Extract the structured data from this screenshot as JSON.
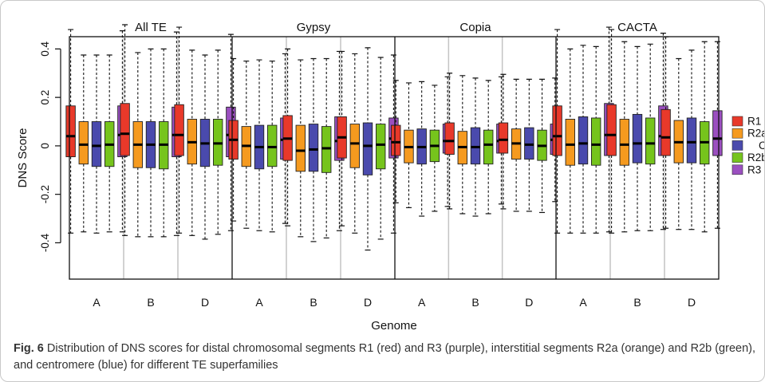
{
  "chart_data": {
    "type": "box",
    "panels": [
      "All TE",
      "Gypsy",
      "Copia",
      "CACTA"
    ],
    "genomes": [
      "A",
      "B",
      "D"
    ],
    "ylabel": "DNS Score",
    "xlabel": "Genome",
    "ylim": [
      -0.55,
      0.5
    ],
    "yticks": [
      -0.4,
      -0.2,
      0,
      0.2,
      0.4
    ],
    "yticklabels": [
      "-0.4",
      "-0.2",
      "0",
      "0.2",
      "0.4"
    ],
    "series": [
      {
        "name": "R1",
        "color": "#e8392a"
      },
      {
        "name": "R2a",
        "color": "#f59a1f"
      },
      {
        "name": "C",
        "color": "#4a4aad"
      },
      {
        "name": "R2b",
        "color": "#76c41c"
      },
      {
        "name": "R3",
        "color": "#9b4fc0"
      }
    ],
    "boxes": [
      [
        [
          [
            -0.36,
            -0.045,
            0.04,
            0.165,
            0.48
          ],
          [
            -0.355,
            -0.075,
            0.005,
            0.1,
            0.375
          ],
          [
            -0.36,
            -0.085,
            0.0,
            0.1,
            0.375
          ],
          [
            -0.355,
            -0.085,
            0.005,
            0.1,
            0.375
          ],
          [
            -0.355,
            -0.045,
            0.045,
            0.165,
            0.475
          ]
        ],
        [
          [
            -0.37,
            -0.04,
            0.05,
            0.175,
            0.5
          ],
          [
            -0.375,
            -0.09,
            0.005,
            0.1,
            0.385
          ],
          [
            -0.375,
            -0.09,
            0.005,
            0.1,
            0.4
          ],
          [
            -0.375,
            -0.095,
            0.005,
            0.1,
            0.4
          ],
          [
            -0.37,
            -0.045,
            0.045,
            0.16,
            0.47
          ]
        ],
        [
          [
            -0.36,
            -0.04,
            0.045,
            0.17,
            0.49
          ],
          [
            -0.37,
            -0.075,
            0.015,
            0.11,
            0.395
          ],
          [
            -0.385,
            -0.085,
            0.01,
            0.11,
            0.375
          ],
          [
            -0.365,
            -0.08,
            0.01,
            0.11,
            0.395
          ],
          [
            -0.35,
            -0.045,
            0.045,
            0.16,
            0.46
          ]
        ]
      ],
      [
        [
          [
            -0.31,
            -0.055,
            0.025,
            0.105,
            0.36
          ],
          [
            -0.34,
            -0.085,
            0.0,
            0.08,
            0.35
          ],
          [
            -0.35,
            -0.095,
            -0.005,
            0.085,
            0.355
          ],
          [
            -0.355,
            -0.085,
            -0.005,
            0.085,
            0.35
          ],
          [
            -0.32,
            -0.055,
            0.025,
            0.115,
            0.38
          ]
        ],
        [
          [
            -0.33,
            -0.06,
            0.03,
            0.125,
            0.4
          ],
          [
            -0.375,
            -0.105,
            -0.02,
            0.085,
            0.355
          ],
          [
            -0.395,
            -0.105,
            -0.015,
            0.09,
            0.36
          ],
          [
            -0.38,
            -0.11,
            -0.01,
            0.08,
            0.36
          ],
          [
            -0.35,
            -0.06,
            0.02,
            0.12,
            0.39
          ]
        ],
        [
          [
            -0.33,
            -0.05,
            0.035,
            0.12,
            0.39
          ],
          [
            -0.36,
            -0.09,
            0.01,
            0.09,
            0.38
          ],
          [
            -0.43,
            -0.12,
            0.0,
            0.095,
            0.405
          ],
          [
            -0.385,
            -0.095,
            0.005,
            0.09,
            0.365
          ],
          [
            -0.36,
            -0.05,
            0.03,
            0.115,
            0.375
          ]
        ]
      ],
      [
        [
          [
            -0.235,
            -0.04,
            0.015,
            0.085,
            0.27
          ],
          [
            -0.255,
            -0.07,
            -0.005,
            0.065,
            0.26
          ],
          [
            -0.29,
            -0.075,
            -0.005,
            0.07,
            0.265
          ],
          [
            -0.27,
            -0.065,
            0.0,
            0.065,
            0.25
          ],
          [
            -0.25,
            -0.03,
            0.02,
            0.09,
            0.285
          ]
        ],
        [
          [
            -0.26,
            -0.035,
            0.02,
            0.095,
            0.3
          ],
          [
            -0.28,
            -0.075,
            -0.005,
            0.06,
            0.29
          ],
          [
            -0.29,
            -0.075,
            -0.005,
            0.075,
            0.28
          ],
          [
            -0.28,
            -0.075,
            0.005,
            0.065,
            0.27
          ],
          [
            -0.24,
            -0.03,
            0.02,
            0.09,
            0.285
          ]
        ],
        [
          [
            -0.26,
            -0.03,
            0.025,
            0.095,
            0.295
          ],
          [
            -0.27,
            -0.055,
            0.01,
            0.07,
            0.275
          ],
          [
            -0.27,
            -0.055,
            0.005,
            0.075,
            0.275
          ],
          [
            -0.275,
            -0.06,
            0.0,
            0.065,
            0.275
          ],
          [
            -0.23,
            -0.035,
            0.025,
            0.09,
            0.28
          ]
        ]
      ],
      [
        [
          [
            -0.36,
            -0.04,
            0.04,
            0.165,
            0.48
          ],
          [
            -0.36,
            -0.08,
            0.005,
            0.11,
            0.4
          ],
          [
            -0.36,
            -0.075,
            0.01,
            0.12,
            0.415
          ],
          [
            -0.36,
            -0.08,
            0.005,
            0.115,
            0.41
          ],
          [
            -0.355,
            -0.04,
            0.045,
            0.175,
            0.49
          ]
        ],
        [
          [
            -0.36,
            -0.04,
            0.045,
            0.17,
            0.48
          ],
          [
            -0.355,
            -0.08,
            0.005,
            0.11,
            0.43
          ],
          [
            -0.35,
            -0.07,
            0.01,
            0.13,
            0.41
          ],
          [
            -0.35,
            -0.075,
            0.01,
            0.115,
            0.42
          ],
          [
            -0.345,
            -0.04,
            0.04,
            0.165,
            0.465
          ]
        ],
        [
          [
            -0.34,
            -0.04,
            0.035,
            0.15,
            0.45
          ],
          [
            -0.345,
            -0.07,
            0.015,
            0.105,
            0.36
          ],
          [
            -0.345,
            -0.07,
            0.015,
            0.115,
            0.395
          ],
          [
            -0.355,
            -0.075,
            0.015,
            0.1,
            0.43
          ],
          [
            -0.34,
            -0.04,
            0.03,
            0.145,
            0.43
          ]
        ]
      ]
    ]
  },
  "caption": {
    "label": "Fig. 6",
    "text": " Distribution of DNS scores for distal chromosomal segments R1 (red) and R3 (purple), interstitial segments R2a (orange) and R2b (green), and centromere (blue) for different TE superfamilies"
  }
}
